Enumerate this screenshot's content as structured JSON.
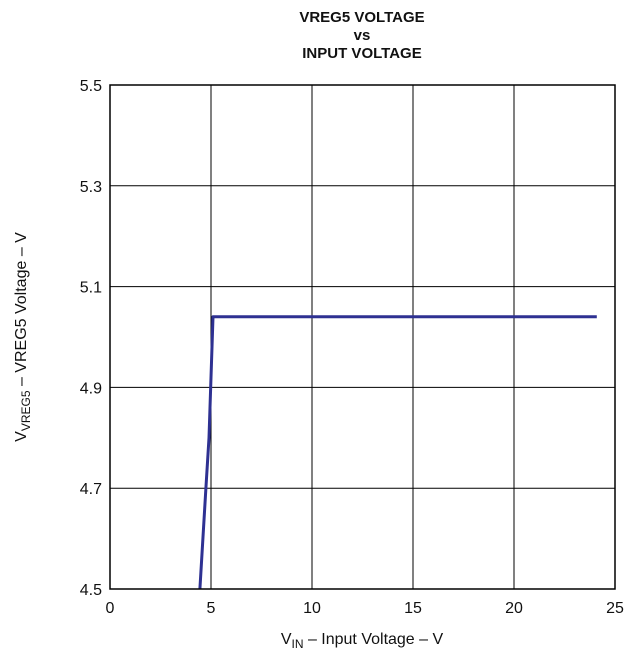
{
  "chart_data": {
    "type": "line",
    "title_lines": [
      "VREG5 VOLTAGE",
      "vs",
      "INPUT VOLTAGE"
    ],
    "xlabel": {
      "main": "V",
      "sub": "IN",
      "rest": " – Input Voltage – V"
    },
    "ylabel": {
      "main": "V",
      "sub": "VREG5",
      "rest": " – VREG5 Voltage – V"
    },
    "xlim": [
      0,
      25
    ],
    "ylim": [
      4.5,
      5.5
    ],
    "x_ticks": [
      0,
      5,
      10,
      15,
      20,
      25
    ],
    "x_tick_labels": [
      "0",
      "5",
      "10",
      "15",
      "20",
      "25"
    ],
    "y_ticks": [
      4.5,
      4.7,
      4.9,
      5.1,
      5.3,
      5.5
    ],
    "y_tick_labels": [
      "4.5",
      "4.7",
      "4.9",
      "5.1",
      "5.3",
      "5.5"
    ],
    "grid": true,
    "series": [
      {
        "color": "#2e3192",
        "x": [
          4.45,
          4.75,
          4.9,
          5.1,
          24.1
        ],
        "y": [
          4.5,
          4.7,
          4.8,
          5.04,
          5.04
        ]
      }
    ]
  }
}
